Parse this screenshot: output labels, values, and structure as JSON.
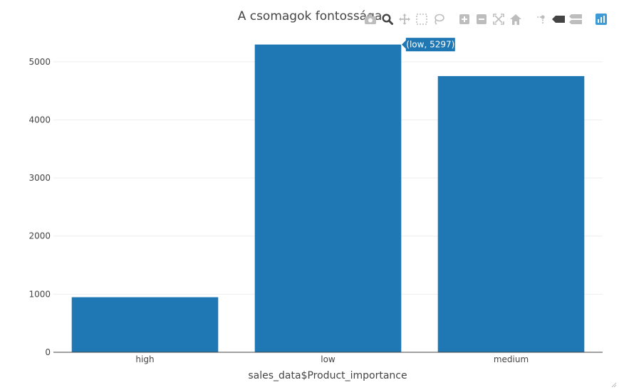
{
  "chart_data": {
    "type": "bar",
    "title": "A csomagok fontossága",
    "xlabel": "sales_data$Product_importance",
    "ylabel": "",
    "categories": [
      "high",
      "low",
      "medium"
    ],
    "values": [
      948,
      5297,
      4754
    ],
    "ylim": [
      0,
      5500
    ],
    "yticks": [
      0,
      1000,
      2000,
      3000,
      4000,
      5000
    ],
    "grid": true,
    "bar_color": "#1f77b4",
    "hover_label": "(low, 5297)",
    "hover_index": 1
  },
  "modebar": {
    "icons": [
      "camera-icon",
      "zoom-icon",
      "pan-icon",
      "box-select-icon",
      "lasso-icon",
      "zoom-in-icon",
      "zoom-out-icon",
      "autoscale-icon",
      "reset-axes-icon",
      "spike-lines-icon",
      "hover-closest-icon",
      "hover-compare-icon",
      "plotly-logo-icon"
    ],
    "color": "#bdbdbd",
    "active_color": "#444444"
  }
}
